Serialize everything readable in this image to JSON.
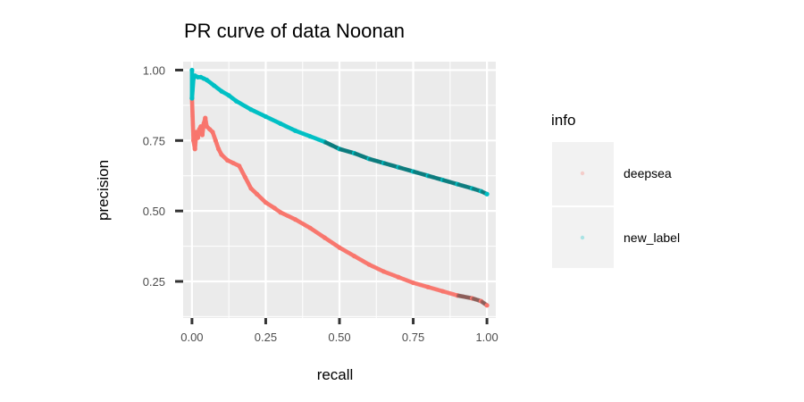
{
  "chart_data": {
    "type": "scatter",
    "title": "PR curve of data Noonan",
    "xlabel": "recall",
    "ylabel": "precision",
    "xlim": [
      -0.03,
      1.03
    ],
    "ylim": [
      0.12,
      1.03
    ],
    "x_ticks": [
      0,
      0.25,
      0.5,
      0.75,
      1
    ],
    "x_tick_labels": [
      "0.00",
      "0.25",
      "0.50",
      "0.75",
      "1.00"
    ],
    "y_ticks": [
      0.25,
      0.5,
      0.75,
      1
    ],
    "y_tick_labels": [
      "0.25",
      "0.50",
      "0.75",
      "1.00"
    ],
    "grid": true,
    "legend_title": "info",
    "legend_position": "right",
    "series": [
      {
        "name": "deepsea",
        "color": "#F8766D",
        "points": [
          [
            0.0,
            0.9
          ],
          [
            0.005,
            0.75
          ],
          [
            0.01,
            0.72
          ],
          [
            0.015,
            0.78
          ],
          [
            0.02,
            0.76
          ],
          [
            0.025,
            0.79
          ],
          [
            0.03,
            0.8
          ],
          [
            0.035,
            0.77
          ],
          [
            0.04,
            0.81
          ],
          [
            0.045,
            0.83
          ],
          [
            0.05,
            0.8
          ],
          [
            0.06,
            0.79
          ],
          [
            0.07,
            0.78
          ],
          [
            0.08,
            0.75
          ],
          [
            0.09,
            0.72
          ],
          [
            0.1,
            0.7
          ],
          [
            0.12,
            0.68
          ],
          [
            0.14,
            0.67
          ],
          [
            0.16,
            0.66
          ],
          [
            0.18,
            0.62
          ],
          [
            0.2,
            0.58
          ],
          [
            0.22,
            0.56
          ],
          [
            0.25,
            0.53
          ],
          [
            0.28,
            0.51
          ],
          [
            0.3,
            0.495
          ],
          [
            0.35,
            0.47
          ],
          [
            0.4,
            0.44
          ],
          [
            0.45,
            0.405
          ],
          [
            0.5,
            0.37
          ],
          [
            0.55,
            0.34
          ],
          [
            0.6,
            0.31
          ],
          [
            0.65,
            0.285
          ],
          [
            0.7,
            0.265
          ],
          [
            0.75,
            0.245
          ],
          [
            0.8,
            0.23
          ],
          [
            0.85,
            0.215
          ],
          [
            0.9,
            0.2
          ],
          [
            0.95,
            0.19
          ],
          [
            0.98,
            0.18
          ],
          [
            1.0,
            0.165
          ]
        ]
      },
      {
        "name": "new_label",
        "color": "#00BFC4",
        "points": [
          [
            0.0,
            1.0
          ],
          [
            0.0,
            0.9
          ],
          [
            0.005,
            0.97
          ],
          [
            0.01,
            0.98
          ],
          [
            0.02,
            0.975
          ],
          [
            0.03,
            0.975
          ],
          [
            0.04,
            0.97
          ],
          [
            0.05,
            0.965
          ],
          [
            0.075,
            0.945
          ],
          [
            0.1,
            0.925
          ],
          [
            0.125,
            0.91
          ],
          [
            0.15,
            0.89
          ],
          [
            0.2,
            0.86
          ],
          [
            0.25,
            0.835
          ],
          [
            0.3,
            0.81
          ],
          [
            0.35,
            0.785
          ],
          [
            0.4,
            0.765
          ],
          [
            0.45,
            0.745
          ],
          [
            0.5,
            0.72
          ],
          [
            0.55,
            0.705
          ],
          [
            0.6,
            0.685
          ],
          [
            0.65,
            0.67
          ],
          [
            0.7,
            0.655
          ],
          [
            0.75,
            0.64
          ],
          [
            0.8,
            0.625
          ],
          [
            0.85,
            0.61
          ],
          [
            0.9,
            0.595
          ],
          [
            0.95,
            0.58
          ],
          [
            0.98,
            0.57
          ],
          [
            1.0,
            0.56
          ]
        ]
      }
    ]
  }
}
